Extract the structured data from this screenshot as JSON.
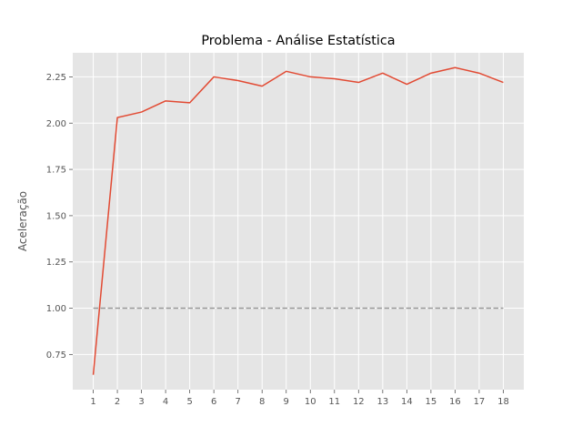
{
  "chart_data": {
    "type": "line",
    "title": "Problema - Análise Estatística",
    "xlabel": "",
    "ylabel": "Aceleração",
    "x": [
      1,
      2,
      3,
      4,
      5,
      6,
      7,
      8,
      9,
      10,
      11,
      12,
      13,
      14,
      15,
      16,
      17,
      18
    ],
    "xticks": [
      "1",
      "2",
      "3",
      "4",
      "5",
      "6",
      "7",
      "8",
      "9",
      "10",
      "11",
      "12",
      "13",
      "14",
      "15",
      "16",
      "17",
      "18"
    ],
    "yticks": [
      "0.75",
      "1.00",
      "1.25",
      "1.50",
      "1.75",
      "2.00",
      "2.25"
    ],
    "xlim": [
      0.15,
      18.85
    ],
    "ylim": [
      0.56,
      2.38
    ],
    "grid": true,
    "legend": "none",
    "series": [
      {
        "values": [
          0.64,
          2.03,
          2.06,
          2.12,
          2.11,
          2.25,
          2.23,
          2.2,
          2.28,
          2.25,
          2.24,
          2.22,
          2.27,
          2.21,
          2.27,
          2.3,
          2.27,
          2.22
        ],
        "color": "#E24A33",
        "style": "solid"
      },
      {
        "values": [
          1.0,
          1.0,
          1.0,
          1.0,
          1.0,
          1.0,
          1.0,
          1.0,
          1.0,
          1.0,
          1.0,
          1.0,
          1.0,
          1.0,
          1.0,
          1.0,
          1.0,
          1.0
        ],
        "color": "#999999",
        "style": "dashed"
      }
    ],
    "colors": {
      "background": "#E5E5E5",
      "grid": "#FFFFFF",
      "text": "#555555"
    }
  }
}
